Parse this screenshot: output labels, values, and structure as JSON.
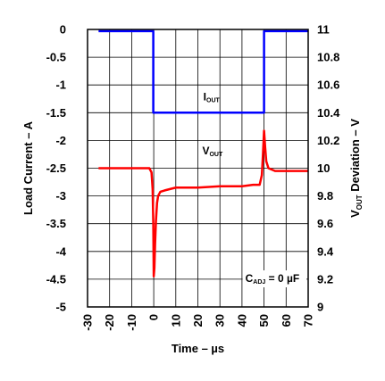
{
  "chart_data": {
    "type": "line",
    "xlabel": "Time – µs",
    "ylabel_left": "Load Current – A",
    "ylabel_right": {
      "main": "V",
      "sub": "OUT",
      "rest": " Deviation – V"
    },
    "x_range": [
      -30,
      70
    ],
    "x_ticks": [
      "-30",
      "-20",
      "-10",
      "0",
      "10",
      "20",
      "30",
      "40",
      "50",
      "60",
      "70"
    ],
    "y_left_range": [
      -5,
      0
    ],
    "y_left_ticks": [
      "0",
      "-0.5",
      "-1",
      "-1.5",
      "-2",
      "-2.5",
      "-3",
      "-3.5",
      "-4",
      "-4.5",
      "-5"
    ],
    "y_right_range": [
      9,
      11
    ],
    "y_right_ticks": [
      "11",
      "10.8",
      "10.6",
      "10.4",
      "10.2",
      "10",
      "9.8",
      "9.6",
      "9.4",
      "9.2",
      "9"
    ],
    "grid": true,
    "series": [
      {
        "name": {
          "main": "I",
          "sub": "OUT"
        },
        "axis": "left",
        "color": "#0000ff",
        "x": [
          -25,
          -0.2,
          -0.2,
          50,
          50,
          70
        ],
        "y": [
          -0.03,
          -0.03,
          -1.5,
          -1.5,
          -0.03,
          -0.03
        ]
      },
      {
        "name": {
          "main": "V",
          "sub": "OUT"
        },
        "axis": "right",
        "color": "#ff0000",
        "x": [
          -25,
          -10,
          -2,
          -1,
          -0.5,
          -0.2,
          0,
          0.3,
          0.6,
          1,
          1.5,
          2,
          3,
          5,
          10,
          20,
          30,
          40,
          45,
          48,
          49,
          49.5,
          50,
          50.5,
          51,
          52,
          55,
          60,
          65,
          70
        ],
        "y": [
          10.0,
          10.0,
          10.0,
          9.97,
          9.85,
          9.6,
          9.22,
          9.28,
          9.45,
          9.62,
          9.75,
          9.8,
          9.83,
          9.84,
          9.86,
          9.86,
          9.87,
          9.87,
          9.88,
          9.88,
          9.95,
          10.1,
          10.27,
          10.15,
          10.05,
          10.0,
          9.98,
          9.98,
          9.98,
          9.98
        ]
      }
    ],
    "annotation": {
      "main": "C",
      "sub": "ADJ",
      "rest": " = 0 µF"
    }
  }
}
